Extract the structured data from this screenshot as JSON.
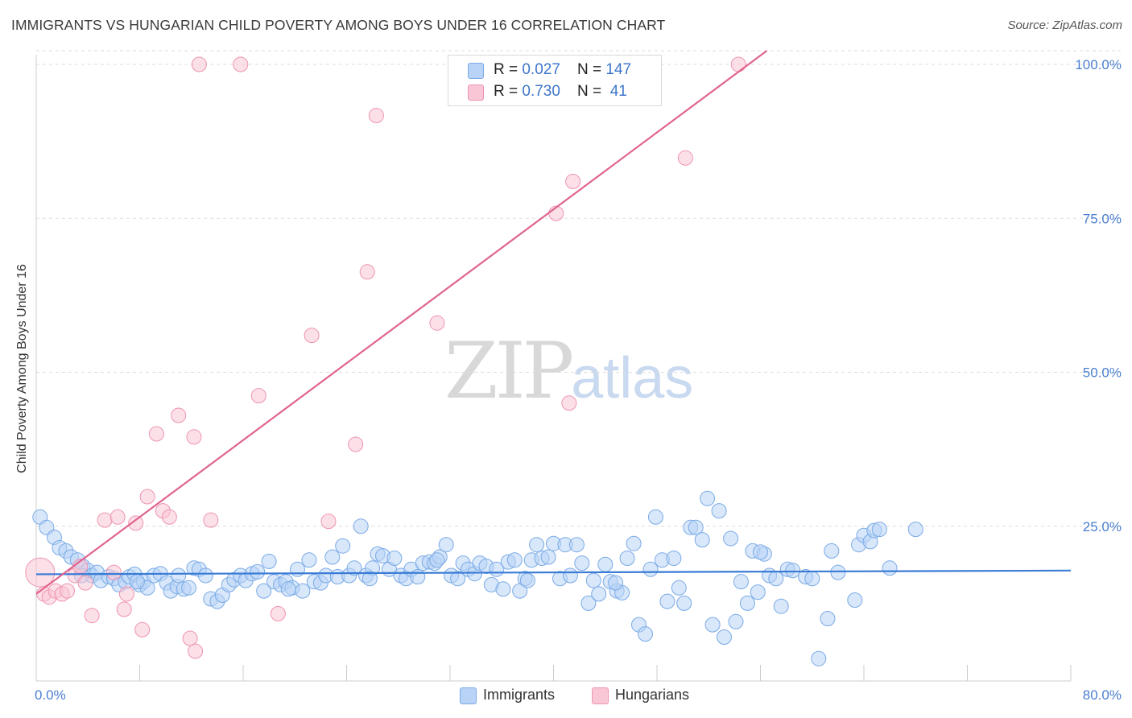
{
  "header": {
    "title": "IMMIGRANTS VS HUNGARIAN CHILD POVERTY AMONG BOYS UNDER 16 CORRELATION CHART",
    "source": "Source: ZipAtlas.com"
  },
  "watermark": {
    "zip": "ZIP",
    "atlas": "atlas"
  },
  "legend": {
    "immigrants": {
      "r_label": "R = ",
      "r_value": "0.027",
      "n_label": "N = ",
      "n_value": "147"
    },
    "hungarians": {
      "r_label": "R = ",
      "r_value": "0.730",
      "n_label": "N = ",
      "n_value": " 41"
    }
  },
  "colors": {
    "immigrants_fill": "#b8d3f5",
    "immigrants_stroke": "#7aaae6",
    "immigrants_line": "#3a7bd5",
    "hungarians_fill": "#f9c6d5",
    "hungarians_stroke": "#ee94b0",
    "hungarians_line": "#e0648e",
    "tick_text": "#4a7fd0",
    "grid": "#dddddd"
  },
  "chart_data": {
    "type": "scatter",
    "title": "IMMIGRANTS VS HUNGARIAN CHILD POVERTY AMONG BOYS UNDER 16 CORRELATION CHART",
    "xlabel": "",
    "ylabel": "Child Poverty Among Boys Under 16",
    "xlim": [
      0,
      80
    ],
    "ylim": [
      0,
      100
    ],
    "x_tick_labels": [
      "0.0%",
      "80.0%"
    ],
    "y_ticks": [
      25,
      50,
      75,
      100
    ],
    "y_tick_labels": [
      "25.0%",
      "50.0%",
      "75.0%",
      "100.0%"
    ],
    "grid": true,
    "series": [
      {
        "name": "Immigrants",
        "trend": {
          "x": [
            0,
            80
          ],
          "y": [
            17.2,
            17.8
          ]
        },
        "points": [
          [
            0.3,
            26.5
          ],
          [
            0.8,
            24.8
          ],
          [
            1.4,
            23.2
          ],
          [
            1.8,
            21.5
          ],
          [
            2.3,
            21.0
          ],
          [
            2.7,
            20.0
          ],
          [
            3.2,
            19.5
          ],
          [
            3.6,
            18.5
          ],
          [
            4.0,
            17.8
          ],
          [
            4.3,
            17.0
          ],
          [
            4.7,
            17.5
          ],
          [
            5.0,
            16.2
          ],
          [
            5.6,
            16.8
          ],
          [
            6.0,
            16.5
          ],
          [
            6.4,
            15.5
          ],
          [
            6.9,
            16.0
          ],
          [
            7.2,
            16.8
          ],
          [
            7.6,
            17.2
          ],
          [
            8.0,
            15.5
          ],
          [
            8.3,
            16.0
          ],
          [
            8.6,
            15.0
          ],
          [
            9.1,
            17.0
          ],
          [
            9.6,
            17.3
          ],
          [
            10.1,
            15.8
          ],
          [
            10.4,
            14.5
          ],
          [
            10.9,
            15.2
          ],
          [
            11.4,
            14.8
          ],
          [
            11.8,
            15.0
          ],
          [
            12.2,
            18.2
          ],
          [
            12.6,
            18.0
          ],
          [
            13.1,
            17.0
          ],
          [
            13.5,
            13.2
          ],
          [
            14.0,
            12.8
          ],
          [
            14.4,
            13.8
          ],
          [
            14.9,
            15.5
          ],
          [
            15.3,
            16.3
          ],
          [
            15.8,
            17.0
          ],
          [
            16.2,
            16.2
          ],
          [
            16.7,
            17.3
          ],
          [
            17.1,
            17.6
          ],
          [
            17.6,
            14.5
          ],
          [
            18.0,
            19.3
          ],
          [
            18.4,
            16.0
          ],
          [
            18.9,
            15.5
          ],
          [
            19.3,
            16.0
          ],
          [
            19.8,
            15.0
          ],
          [
            20.2,
            18.0
          ],
          [
            20.6,
            14.5
          ],
          [
            21.1,
            19.5
          ],
          [
            21.5,
            16.0
          ],
          [
            22.0,
            15.8
          ],
          [
            22.4,
            17.0
          ],
          [
            22.9,
            20.0
          ],
          [
            23.3,
            16.8
          ],
          [
            23.7,
            21.8
          ],
          [
            24.2,
            17.0
          ],
          [
            24.6,
            18.2
          ],
          [
            25.1,
            25.0
          ],
          [
            25.5,
            17.0
          ],
          [
            26.0,
            18.2
          ],
          [
            26.4,
            20.5
          ],
          [
            26.8,
            20.2
          ],
          [
            27.3,
            18.0
          ],
          [
            27.7,
            19.8
          ],
          [
            28.2,
            17.0
          ],
          [
            28.6,
            16.5
          ],
          [
            29.0,
            18.0
          ],
          [
            29.5,
            16.8
          ],
          [
            29.9,
            19.0
          ],
          [
            30.4,
            19.2
          ],
          [
            30.8,
            19.0
          ],
          [
            31.2,
            20.0
          ],
          [
            31.7,
            22.0
          ],
          [
            32.1,
            17.0
          ],
          [
            32.6,
            16.5
          ],
          [
            33.0,
            19.0
          ],
          [
            33.4,
            18.0
          ],
          [
            33.9,
            17.3
          ],
          [
            34.3,
            19.0
          ],
          [
            34.8,
            18.5
          ],
          [
            35.2,
            15.5
          ],
          [
            35.6,
            18.0
          ],
          [
            36.1,
            14.8
          ],
          [
            36.5,
            19.2
          ],
          [
            37.0,
            19.5
          ],
          [
            37.4,
            14.5
          ],
          [
            37.8,
            16.5
          ],
          [
            38.3,
            19.5
          ],
          [
            38.7,
            22.0
          ],
          [
            39.1,
            19.8
          ],
          [
            39.6,
            20.0
          ],
          [
            40.0,
            22.2
          ],
          [
            40.5,
            16.5
          ],
          [
            40.9,
            22.0
          ],
          [
            41.3,
            17.0
          ],
          [
            41.8,
            22.0
          ],
          [
            42.2,
            19.0
          ],
          [
            42.7,
            12.5
          ],
          [
            43.1,
            16.2
          ],
          [
            43.5,
            14.0
          ],
          [
            44.0,
            18.8
          ],
          [
            44.4,
            16.0
          ],
          [
            44.9,
            14.5
          ],
          [
            45.3,
            14.2
          ],
          [
            45.7,
            19.8
          ],
          [
            46.2,
            22.2
          ],
          [
            46.6,
            9.0
          ],
          [
            47.1,
            7.5
          ],
          [
            47.5,
            18.0
          ],
          [
            47.9,
            26.5
          ],
          [
            48.4,
            19.5
          ],
          [
            48.8,
            12.8
          ],
          [
            49.3,
            19.8
          ],
          [
            49.7,
            15.0
          ],
          [
            50.1,
            12.5
          ],
          [
            50.6,
            24.8
          ],
          [
            51.0,
            24.8
          ],
          [
            51.5,
            22.8
          ],
          [
            51.9,
            29.5
          ],
          [
            52.3,
            9.0
          ],
          [
            52.8,
            27.5
          ],
          [
            53.2,
            7.0
          ],
          [
            53.7,
            23.0
          ],
          [
            54.1,
            9.5
          ],
          [
            54.5,
            16.0
          ],
          [
            55.0,
            12.5
          ],
          [
            55.4,
            21.0
          ],
          [
            55.8,
            14.3
          ],
          [
            56.3,
            20.5
          ],
          [
            56.7,
            17.0
          ],
          [
            57.2,
            16.5
          ],
          [
            57.6,
            12.0
          ],
          [
            58.1,
            18.0
          ],
          [
            58.5,
            17.8
          ],
          [
            59.5,
            16.8
          ],
          [
            60.0,
            16.5
          ],
          [
            60.5,
            3.5
          ],
          [
            61.2,
            10.0
          ],
          [
            61.5,
            21.0
          ],
          [
            62.0,
            17.5
          ],
          [
            63.3,
            13.0
          ],
          [
            63.6,
            22.0
          ],
          [
            64.0,
            23.5
          ],
          [
            64.5,
            22.5
          ],
          [
            64.8,
            24.3
          ],
          [
            65.2,
            24.5
          ],
          [
            66.0,
            18.2
          ],
          [
            68.0,
            24.5
          ],
          [
            56.0,
            20.8
          ],
          [
            44.8,
            15.8
          ],
          [
            31.0,
            19.5
          ],
          [
            19.5,
            14.8
          ],
          [
            7.8,
            16.0
          ],
          [
            38.0,
            16.2
          ],
          [
            25.8,
            16.5
          ],
          [
            11.0,
            17.0
          ],
          [
            3.5,
            17.0
          ]
        ]
      },
      {
        "name": "Hungarians",
        "trend": {
          "x": [
            0,
            56.5
          ],
          "y": [
            14.0,
            100.0
          ]
        },
        "points": [
          [
            0.3,
            17.5
          ],
          [
            0.6,
            14.0
          ],
          [
            1.0,
            13.5
          ],
          [
            1.5,
            14.5
          ],
          [
            2.0,
            14.0
          ],
          [
            2.4,
            14.5
          ],
          [
            3.0,
            17.0
          ],
          [
            3.4,
            18.5
          ],
          [
            3.8,
            15.8
          ],
          [
            4.3,
            10.5
          ],
          [
            5.3,
            26.0
          ],
          [
            6.0,
            17.5
          ],
          [
            6.3,
            26.5
          ],
          [
            6.8,
            11.5
          ],
          [
            7.0,
            14.0
          ],
          [
            7.7,
            25.5
          ],
          [
            8.2,
            8.2
          ],
          [
            8.6,
            29.8
          ],
          [
            9.3,
            40.0
          ],
          [
            9.8,
            27.5
          ],
          [
            10.3,
            26.5
          ],
          [
            11.0,
            43.0
          ],
          [
            11.9,
            6.8
          ],
          [
            12.3,
            4.7
          ],
          [
            12.2,
            39.5
          ],
          [
            12.6,
            100.0
          ],
          [
            13.5,
            26.0
          ],
          [
            15.8,
            100.0
          ],
          [
            17.2,
            46.2
          ],
          [
            18.7,
            10.8
          ],
          [
            21.3,
            56.0
          ],
          [
            22.6,
            25.8
          ],
          [
            24.7,
            38.3
          ],
          [
            25.6,
            66.3
          ],
          [
            26.3,
            91.7
          ],
          [
            31.0,
            58.0
          ],
          [
            40.2,
            75.8
          ],
          [
            41.2,
            45.0
          ],
          [
            41.5,
            81.0
          ],
          [
            50.2,
            84.8
          ],
          [
            54.3,
            100.0
          ]
        ]
      }
    ]
  },
  "bottom_legend": {
    "immigrants": "Immigrants",
    "hungarians": "Hungarians"
  }
}
